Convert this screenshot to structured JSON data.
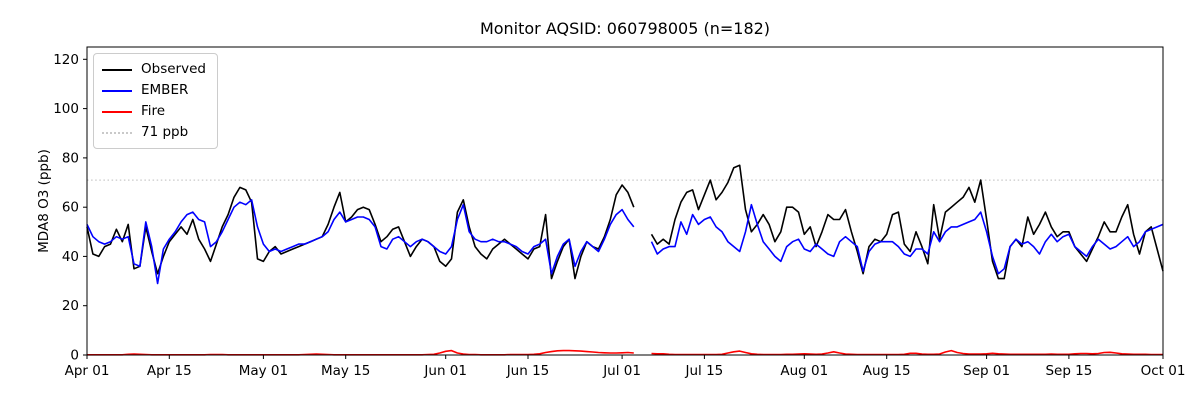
{
  "figure": {
    "title": "Monitor AQSID: 060798005 (n=182)",
    "ylabel": "MDA8 O3 (ppb)",
    "background": "#ffffff"
  },
  "legend": {
    "position": "upper left",
    "items": [
      {
        "label": "Observed",
        "color": "#000000",
        "line_style": "solid"
      },
      {
        "label": "EMBER",
        "color": "#0000ff",
        "line_style": "solid"
      },
      {
        "label": "Fire",
        "color": "#ff0000",
        "line_style": "solid"
      },
      {
        "label": "71 ppb",
        "color": "#c9c9c9",
        "line_style": "dotted"
      }
    ]
  },
  "chart_data": {
    "type": "line",
    "title": "Monitor AQSID: 060798005 (n=182)",
    "n_observations": 182,
    "xlabel": "",
    "ylabel": "MDA8 O3 (ppb)",
    "ylim": [
      0,
      125
    ],
    "yticks": [
      0,
      20,
      40,
      60,
      80,
      100,
      120
    ],
    "x_description": "daily values, day index 0 = Apr 01, day index 183 = Oct 01",
    "xtick_labels": [
      "Apr 01",
      "Apr 15",
      "May 01",
      "May 15",
      "Jun 01",
      "Jun 15",
      "Jul 01",
      "Jul 15",
      "Aug 01",
      "Aug 15",
      "Sep 01",
      "Sep 15",
      "Oct 01"
    ],
    "xtick_day_index": [
      0,
      14,
      30,
      44,
      61,
      75,
      91,
      105,
      122,
      136,
      153,
      167,
      183
    ],
    "grid": false,
    "legend_position": "upper left",
    "threshold": {
      "label": "71 ppb",
      "value": 71,
      "color": "#c9c9c9",
      "style": "dotted"
    },
    "missing_day_indices": [
      94,
      95
    ],
    "series": [
      {
        "name": "Observed",
        "color": "#000000",
        "width": 1.6,
        "values": [
          52,
          41,
          40,
          44,
          45,
          51,
          46,
          53,
          35,
          36,
          52,
          42,
          33,
          40,
          46,
          49,
          52,
          49,
          55,
          47,
          43,
          38,
          45,
          52,
          57,
          64,
          68,
          67,
          62,
          39,
          38,
          42,
          44,
          41,
          42,
          43,
          44,
          45,
          46,
          47,
          48,
          53,
          60,
          66,
          54,
          56,
          59,
          60,
          59,
          53,
          46,
          48,
          51,
          52,
          46,
          40,
          44,
          47,
          46,
          44,
          38,
          36,
          39,
          58,
          63,
          52,
          44,
          41,
          39,
          43,
          45,
          47,
          45,
          43,
          41,
          39,
          43,
          44,
          57,
          31,
          38,
          44,
          47,
          31,
          40,
          46,
          44,
          43,
          48,
          55,
          65,
          69,
          66,
          60,
          null,
          null,
          49,
          45,
          47,
          45,
          55,
          62,
          66,
          67,
          59,
          65,
          71,
          63,
          66,
          70,
          76,
          77,
          59,
          50,
          53,
          57,
          53,
          46,
          50,
          60,
          60,
          58,
          49,
          52,
          44,
          50,
          57,
          55,
          55,
          59,
          50,
          42,
          33,
          44,
          47,
          46,
          49,
          57,
          58,
          45,
          42,
          50,
          44,
          37,
          61,
          47,
          58,
          60,
          62,
          64,
          68,
          62,
          71,
          55,
          38,
          31,
          31,
          44,
          47,
          44,
          56,
          49,
          53,
          58,
          52,
          48,
          50,
          50,
          44,
          41,
          38,
          43,
          48,
          54,
          50,
          50,
          56,
          61,
          49,
          41,
          50,
          52,
          43,
          34
        ]
      },
      {
        "name": "EMBER",
        "color": "#0000ff",
        "width": 1.6,
        "values": [
          53,
          48,
          46,
          45,
          46,
          48,
          47,
          48,
          37,
          36,
          54,
          44,
          29,
          43,
          47,
          50,
          54,
          57,
          58,
          55,
          54,
          44,
          46,
          50,
          55,
          60,
          62,
          61,
          63,
          52,
          45,
          42,
          43,
          42,
          43,
          44,
          45,
          45,
          46,
          47,
          48,
          50,
          55,
          58,
          54,
          55,
          56,
          56,
          55,
          52,
          44,
          43,
          47,
          48,
          46,
          44,
          46,
          47,
          46,
          44,
          42,
          41,
          44,
          55,
          61,
          50,
          47,
          46,
          46,
          47,
          46,
          46,
          45,
          44,
          42,
          41,
          44,
          45,
          47,
          33,
          40,
          45,
          47,
          36,
          42,
          46,
          44,
          42,
          47,
          53,
          57,
          59,
          55,
          52,
          null,
          null,
          46,
          41,
          43,
          44,
          44,
          54,
          49,
          57,
          53,
          55,
          56,
          52,
          50,
          46,
          44,
          42,
          50,
          61,
          53,
          46,
          43,
          40,
          38,
          44,
          46,
          47,
          43,
          42,
          45,
          43,
          41,
          40,
          46,
          48,
          46,
          44,
          34,
          42,
          45,
          46,
          46,
          46,
          44,
          41,
          40,
          43,
          43,
          41,
          50,
          46,
          50,
          52,
          52,
          53,
          54,
          55,
          58,
          50,
          40,
          33,
          35,
          44,
          47,
          45,
          46,
          44,
          41,
          46,
          49,
          46,
          48,
          49,
          44,
          42,
          40,
          44,
          47,
          45,
          43,
          44,
          46,
          48,
          44,
          46,
          50,
          51,
          52,
          53
        ]
      },
      {
        "name": "Fire",
        "color": "#ff0000",
        "width": 1.6,
        "values": [
          0.1,
          0.1,
          0.1,
          0.1,
          0.1,
          0.1,
          0.1,
          0.3,
          0.4,
          0.3,
          0.2,
          0.1,
          0.1,
          0.1,
          0.1,
          0.1,
          0.1,
          0.1,
          0.1,
          0.1,
          0.1,
          0.2,
          0.2,
          0.2,
          0.1,
          0.1,
          0.1,
          0.1,
          0.1,
          0.1,
          0.1,
          0.1,
          0.1,
          0.1,
          0.1,
          0.1,
          0.1,
          0.2,
          0.3,
          0.4,
          0.3,
          0.2,
          0.1,
          0.1,
          0.1,
          0.1,
          0.1,
          0.1,
          0.1,
          0.1,
          0.1,
          0.1,
          0.1,
          0.1,
          0.1,
          0.1,
          0.1,
          0.1,
          0.2,
          0.3,
          0.8,
          1.5,
          1.8,
          0.8,
          0.4,
          0.2,
          0.2,
          0.1,
          0.1,
          0.1,
          0.1,
          0.1,
          0.2,
          0.2,
          0.2,
          0.2,
          0.3,
          0.5,
          1.0,
          1.4,
          1.7,
          1.8,
          1.8,
          1.7,
          1.6,
          1.4,
          1.2,
          1.0,
          0.9,
          0.8,
          0.8,
          0.9,
          1.0,
          0.8,
          null,
          null,
          0.6,
          0.5,
          0.5,
          0.3,
          0.2,
          0.2,
          0.2,
          0.2,
          0.2,
          0.2,
          0.2,
          0.2,
          0.3,
          0.8,
          1.3,
          1.6,
          1.0,
          0.5,
          0.3,
          0.2,
          0.2,
          0.2,
          0.2,
          0.3,
          0.3,
          0.4,
          0.5,
          0.4,
          0.3,
          0.4,
          0.8,
          1.3,
          0.8,
          0.4,
          0.3,
          0.2,
          0.2,
          0.2,
          0.2,
          0.2,
          0.2,
          0.2,
          0.2,
          0.3,
          0.7,
          0.7,
          0.4,
          0.3,
          0.3,
          0.4,
          1.2,
          1.8,
          1.0,
          0.6,
          0.4,
          0.4,
          0.4,
          0.5,
          0.7,
          0.5,
          0.4,
          0.3,
          0.3,
          0.3,
          0.3,
          0.3,
          0.3,
          0.3,
          0.4,
          0.3,
          0.3,
          0.3,
          0.5,
          0.6,
          0.6,
          0.5,
          0.6,
          1.0,
          1.1,
          0.8,
          0.5,
          0.4,
          0.3,
          0.3,
          0.3,
          0.2,
          0.2,
          0.2
        ]
      }
    ]
  }
}
